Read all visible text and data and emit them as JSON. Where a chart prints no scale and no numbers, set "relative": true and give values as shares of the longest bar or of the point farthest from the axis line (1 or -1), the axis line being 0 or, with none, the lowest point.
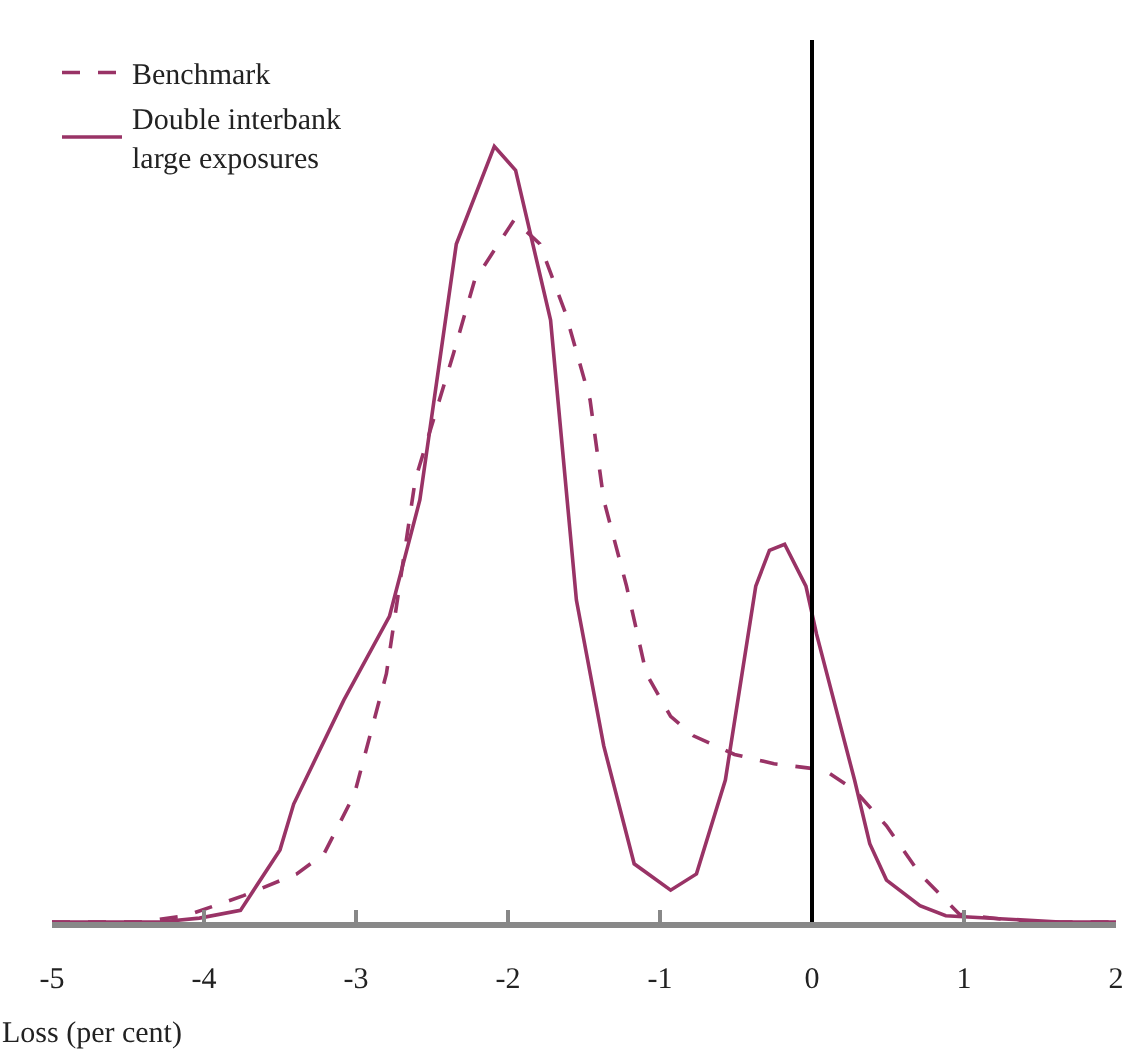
{
  "chart_data": {
    "type": "line",
    "relative": true,
    "xlabel": "Loss (per cent)",
    "xlim": [
      -5,
      2
    ],
    "xticks": [
      -5,
      -4,
      -3,
      -2,
      -1,
      0,
      1,
      2
    ],
    "grid": false,
    "legend": "top left",
    "marker": "none",
    "series": [
      {
        "name": "Benchmark",
        "color": "#993366",
        "line_style": "dashed",
        "x": [
          -5,
          -4.42,
          -4.12,
          -3.74,
          -3.39,
          -3.21,
          -3.01,
          -2.8,
          -2.61,
          -2.36,
          -2.22,
          -1.96,
          -1.79,
          -1.62,
          -1.46,
          -1.37,
          -1.22,
          -1.09,
          -0.93,
          -0.78,
          -0.51,
          -0.25,
          0.08,
          0.28,
          0.49,
          0.71,
          0.97,
          1.41,
          2
        ],
        "values": [
          0,
          0,
          0.008,
          0.034,
          0.062,
          0.088,
          0.165,
          0.32,
          0.57,
          0.732,
          0.827,
          0.905,
          0.874,
          0.784,
          0.673,
          0.544,
          0.433,
          0.32,
          0.265,
          0.24,
          0.216,
          0.204,
          0.196,
          0.17,
          0.124,
          0.062,
          0.01,
          0,
          0
        ]
      },
      {
        "name": "Double interbank\nlarge exposures",
        "color": "#993366",
        "line_style": "solid",
        "x": [
          -5,
          -4.29,
          -4.03,
          -3.76,
          -3.5,
          -3.41,
          -3.08,
          -2.78,
          -2.58,
          -2.34,
          -2.09,
          -1.95,
          -1.72,
          -1.55,
          -1.37,
          -1.17,
          -0.93,
          -0.76,
          -0.57,
          -0.37,
          -0.28,
          -0.18,
          -0.04,
          0.03,
          0.28,
          0.38,
          0.49,
          0.71,
          0.88,
          1.63,
          2
        ],
        "values": [
          0,
          0,
          0.005,
          0.015,
          0.093,
          0.152,
          0.286,
          0.394,
          0.544,
          0.874,
          1,
          0.969,
          0.776,
          0.415,
          0.227,
          0.075,
          0.041,
          0.062,
          0.183,
          0.433,
          0.479,
          0.487,
          0.433,
          0.371,
          0.183,
          0.101,
          0.054,
          0.021,
          0.008,
          0,
          0
        ]
      }
    ],
    "ref_lines": [
      {
        "axis": "x",
        "value": 0,
        "color": "#000000"
      }
    ]
  }
}
